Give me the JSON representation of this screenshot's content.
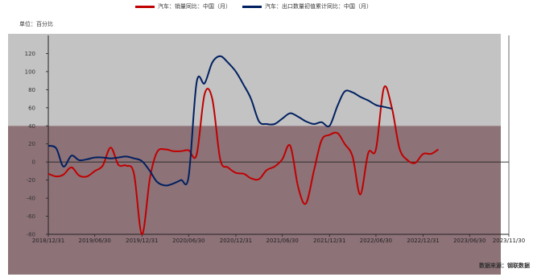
{
  "legend": {
    "series1": "汽车：销量同比：中国（月）",
    "series2": "汽车：出口数量初值累计同比：中国（月）"
  },
  "unit_label": "单位：百分比",
  "source_label": "数据来源：钢联数据",
  "colors": {
    "series1": "#c00000",
    "series2": "#002060",
    "upper_band": "#c3c3c3",
    "lower_band": "#8d7278"
  },
  "chart_data": {
    "type": "line",
    "ylim": [
      -80,
      140
    ],
    "yticks": [
      -80,
      -60,
      -40,
      -20,
      0,
      20,
      40,
      60,
      80,
      100,
      120
    ],
    "xlim": [
      "2018-12-31",
      "2023-11-30"
    ],
    "xticks": [
      "2018/12/31",
      "2019/06/30",
      "2019/12/31",
      "2020/06/30",
      "2020/12/31",
      "2021/06/30",
      "2021/12/31",
      "2022/06/30",
      "2022/12/31",
      "2023/06/30",
      "2023/11/30"
    ],
    "grid": false,
    "legend_position": "top",
    "series": [
      {
        "name": "汽车：销量同比：中国（月）",
        "points": [
          [
            "2018-12-31",
            -13
          ],
          [
            "2019-01-31",
            -16
          ],
          [
            "2019-02-28",
            -14
          ],
          [
            "2019-03-31",
            -6
          ],
          [
            "2019-04-30",
            -15
          ],
          [
            "2019-05-31",
            -16
          ],
          [
            "2019-06-30",
            -10
          ],
          [
            "2019-07-31",
            -4
          ],
          [
            "2019-08-31",
            16
          ],
          [
            "2019-09-30",
            -3
          ],
          [
            "2019-10-31",
            -4
          ],
          [
            "2019-11-30",
            -13
          ],
          [
            "2019-12-31",
            -80
          ],
          [
            "2020-01-31",
            -18
          ],
          [
            "2020-02-28",
            11
          ],
          [
            "2020-03-31",
            14
          ],
          [
            "2020-04-30",
            12
          ],
          [
            "2020-05-31",
            12
          ],
          [
            "2020-06-30",
            13
          ],
          [
            "2020-07-31",
            8
          ],
          [
            "2020-08-31",
            75
          ],
          [
            "2020-09-30",
            70
          ],
          [
            "2020-10-31",
            3
          ],
          [
            "2020-11-30",
            -6
          ],
          [
            "2020-12-31",
            -12
          ],
          [
            "2021-01-31",
            -13
          ],
          [
            "2021-02-28",
            -18
          ],
          [
            "2021-03-31",
            -19
          ],
          [
            "2021-04-30",
            -9
          ],
          [
            "2021-05-31",
            -5
          ],
          [
            "2021-06-30",
            3
          ],
          [
            "2021-07-31",
            18
          ],
          [
            "2021-08-31",
            -28
          ],
          [
            "2021-09-30",
            -46
          ],
          [
            "2021-10-31",
            -10
          ],
          [
            "2021-11-30",
            24
          ],
          [
            "2021-12-31",
            30
          ],
          [
            "2022-01-31",
            32
          ],
          [
            "2022-02-28",
            20
          ],
          [
            "2022-03-31",
            6
          ],
          [
            "2022-04-30",
            -36
          ],
          [
            "2022-05-31",
            10
          ],
          [
            "2022-06-30",
            14
          ],
          [
            "2022-07-31",
            82
          ],
          [
            "2022-08-31",
            60
          ],
          [
            "2022-09-30",
            15
          ],
          [
            "2022-10-31",
            2
          ],
          [
            "2022-11-30",
            -1
          ],
          [
            "2022-12-31",
            9
          ],
          [
            "2023-01-31",
            9
          ],
          [
            "2023-02-28",
            14
          ]
        ]
      },
      {
        "name": "汽车：出口数量初值累计同比：中国（月）",
        "points": [
          [
            "2018-12-31",
            18
          ],
          [
            "2019-01-31",
            15
          ],
          [
            "2019-02-28",
            -5
          ],
          [
            "2019-03-31",
            7
          ],
          [
            "2019-04-30",
            2
          ],
          [
            "2019-05-31",
            3
          ],
          [
            "2019-06-30",
            5
          ],
          [
            "2019-07-31",
            5
          ],
          [
            "2019-08-31",
            4
          ],
          [
            "2019-09-30",
            5
          ],
          [
            "2019-10-31",
            6
          ],
          [
            "2019-11-30",
            4
          ],
          [
            "2019-12-31",
            1
          ],
          [
            "2020-01-31",
            -10
          ],
          [
            "2020-02-28",
            -22
          ],
          [
            "2020-03-31",
            -26
          ],
          [
            "2020-04-30",
            -24
          ],
          [
            "2020-05-31",
            -20
          ],
          [
            "2020-06-30",
            -16
          ],
          [
            "2020-07-31",
            88
          ],
          [
            "2020-08-31",
            87
          ],
          [
            "2020-09-30",
            110
          ],
          [
            "2020-10-31",
            117
          ],
          [
            "2020-11-30",
            110
          ],
          [
            "2020-12-31",
            100
          ],
          [
            "2021-01-31",
            85
          ],
          [
            "2021-02-28",
            70
          ],
          [
            "2021-03-31",
            45
          ],
          [
            "2021-04-30",
            42
          ],
          [
            "2021-05-31",
            42
          ],
          [
            "2021-06-30",
            48
          ],
          [
            "2021-07-31",
            54
          ],
          [
            "2021-08-31",
            50
          ],
          [
            "2021-09-30",
            45
          ],
          [
            "2021-10-31",
            42
          ],
          [
            "2021-11-30",
            44
          ],
          [
            "2021-12-31",
            40
          ],
          [
            "2022-01-31",
            62
          ],
          [
            "2022-02-28",
            78
          ],
          [
            "2022-03-31",
            77
          ],
          [
            "2022-04-30",
            72
          ],
          [
            "2022-05-31",
            68
          ],
          [
            "2022-06-30",
            63
          ],
          [
            "2022-07-31",
            61
          ],
          [
            "2022-08-31",
            59
          ]
        ]
      }
    ]
  }
}
